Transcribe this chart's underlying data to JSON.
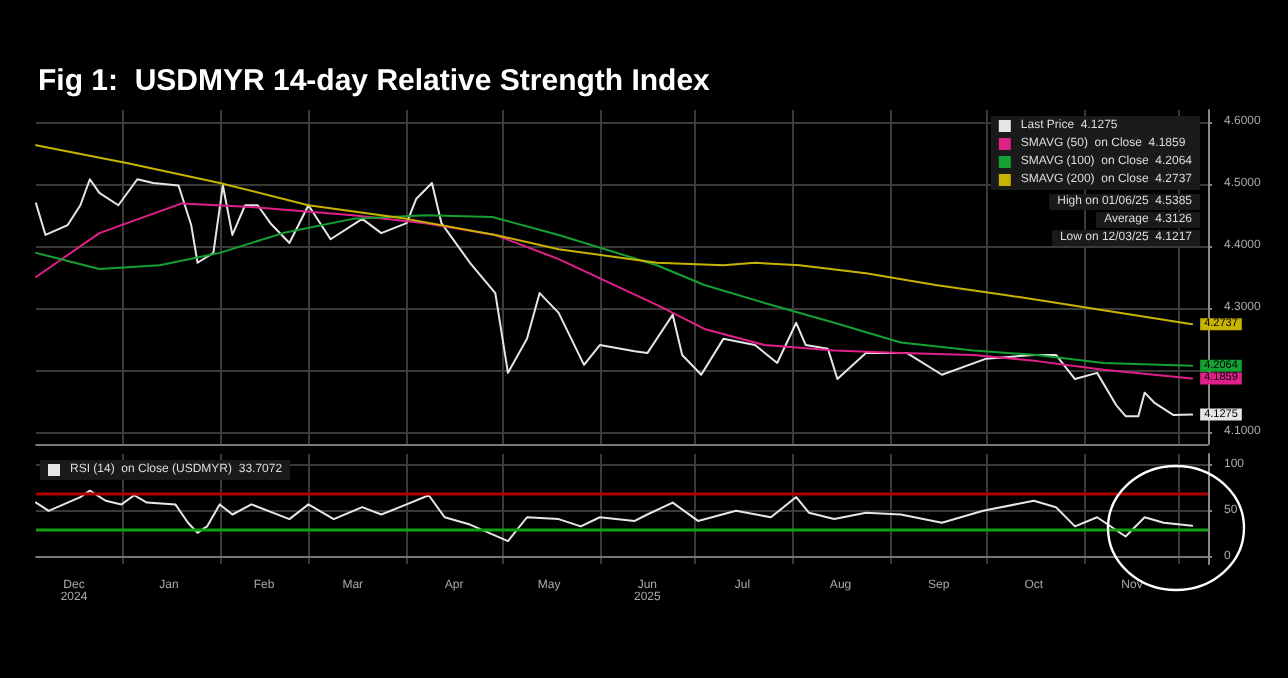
{
  "chart_data": [
    {
      "type": "line",
      "title": "Fig 1:  USDMYR 14-day Relative Strength Index",
      "xlim": [
        "2024-12-05",
        "2025-12-10"
      ],
      "xticks": [
        {
          "value": "2025-01-01",
          "label": null
        },
        {
          "value": "2025-02-01",
          "label": null
        },
        {
          "value": "2025-03-01",
          "label": null
        },
        {
          "value": "2025-04-01",
          "label": null
        },
        {
          "value": "2025-05-01",
          "label": null
        },
        {
          "value": "2025-06-01",
          "label": null
        },
        {
          "value": "2025-07-01",
          "label": null
        },
        {
          "value": "2025-08-01",
          "label": null
        },
        {
          "value": "2025-09-01",
          "label": null
        },
        {
          "value": "2025-10-01",
          "label": null
        },
        {
          "value": "2025-11-01",
          "label": null
        },
        {
          "value": "2025-12-01",
          "label": null
        }
      ],
      "ylim": [
        4.08,
        4.62
      ],
      "yticks": [
        {
          "value": 4.1,
          "label": "4.1000"
        },
        {
          "value": 4.2,
          "label": null
        },
        {
          "value": 4.3,
          "label": "4.3000"
        },
        {
          "value": 4.4,
          "label": "4.4000"
        },
        {
          "value": 4.5,
          "label": "4.5000"
        },
        {
          "value": 4.6,
          "label": "4.6000"
        }
      ],
      "tick_labels": "y",
      "grid": true,
      "legend": "top right",
      "marker": "none",
      "line_style": "solid",
      "annotations": [
        "High on 01/06/25  4.5385",
        "Average  4.3126",
        "Low on 12/03/25  4.1217"
      ],
      "series": [
        {
          "name": "Last Price  4.1275",
          "color": "#e6e6e6",
          "x": [
            "2024-12-05",
            "2024-12-08",
            "2024-12-15",
            "2024-12-19",
            "2024-12-22",
            "2024-12-25",
            "2024-12-31",
            "2025-01-06",
            "2025-01-11",
            "2025-01-19",
            "2025-01-23",
            "2025-01-25",
            "2025-01-30",
            "2025-02-02",
            "2025-02-05",
            "2025-02-09",
            "2025-02-13",
            "2025-02-17",
            "2025-02-23",
            "2025-03-01",
            "2025-03-08",
            "2025-03-18",
            "2025-03-24",
            "2025-04-01",
            "2025-04-04",
            "2025-04-09",
            "2025-04-12",
            "2025-04-21",
            "2025-04-29",
            "2025-05-03",
            "2025-05-09",
            "2025-05-13",
            "2025-05-19",
            "2025-05-27",
            "2025-06-01",
            "2025-06-12",
            "2025-06-16",
            "2025-06-24",
            "2025-06-27",
            "2025-07-03",
            "2025-07-10",
            "2025-07-20",
            "2025-07-27",
            "2025-08-02",
            "2025-08-05",
            "2025-08-12",
            "2025-08-15",
            "2025-08-24",
            "2025-09-06",
            "2025-09-17",
            "2025-10-01",
            "2025-10-16",
            "2025-10-23",
            "2025-10-29",
            "2025-11-05",
            "2025-11-11",
            "2025-11-14",
            "2025-11-18",
            "2025-11-20",
            "2025-11-23",
            "2025-11-29",
            "2025-12-05"
          ],
          "values": [
            4.469,
            4.418,
            4.434,
            4.466,
            4.508,
            4.486,
            4.466,
            4.508,
            4.502,
            4.498,
            4.434,
            4.373,
            4.389,
            4.498,
            4.418,
            4.466,
            4.466,
            4.437,
            4.405,
            4.466,
            4.411,
            4.444,
            4.421,
            4.437,
            4.476,
            4.502,
            4.437,
            4.373,
            4.324,
            4.195,
            4.25,
            4.324,
            4.292,
            4.208,
            4.24,
            4.23,
            4.227,
            4.289,
            4.224,
            4.192,
            4.25,
            4.24,
            4.211,
            4.276,
            4.24,
            4.234,
            4.185,
            4.227,
            4.227,
            4.192,
            4.218,
            4.224,
            4.224,
            4.185,
            4.195,
            4.143,
            4.125,
            4.125,
            4.163,
            4.147,
            4.127,
            4.1275
          ],
          "value_labels": [
            null,
            null,
            null,
            null,
            null,
            null,
            null,
            null,
            null,
            null,
            null,
            null,
            null,
            null,
            null,
            null,
            null,
            null,
            null,
            null,
            null,
            null,
            null,
            null,
            null,
            null,
            null,
            null,
            null,
            null,
            null,
            null,
            null,
            null,
            null,
            null,
            null,
            null,
            null,
            null,
            null,
            null,
            null,
            null,
            null,
            null,
            null,
            null,
            null,
            null,
            null,
            null,
            null,
            null,
            null,
            null,
            null,
            null,
            null,
            null,
            null,
            "4.1275"
          ]
        },
        {
          "name": "SMAVG (50)  on Close  4.1859",
          "color": "#e0208a",
          "x": [
            "2024-12-05",
            "2024-12-25",
            "2025-01-20",
            "2025-02-11",
            "2025-03-15",
            "2025-04-07",
            "2025-04-29",
            "2025-05-19",
            "2025-06-19",
            "2025-07-04",
            "2025-07-23",
            "2025-08-14",
            "2025-09-04",
            "2025-09-27",
            "2025-10-17",
            "2025-11-07",
            "2025-12-05"
          ],
          "values": [
            4.35,
            4.421,
            4.469,
            4.463,
            4.45,
            4.437,
            4.418,
            4.379,
            4.305,
            4.266,
            4.24,
            4.231,
            4.227,
            4.224,
            4.214,
            4.2,
            4.1859
          ],
          "value_labels": [
            null,
            null,
            null,
            null,
            null,
            null,
            null,
            null,
            null,
            null,
            null,
            null,
            null,
            null,
            null,
            null,
            "4.1859"
          ]
        },
        {
          "name": "SMAVG (100)  on Close  4.2064",
          "color": "#14a032",
          "x": [
            "2024-12-05",
            "2024-12-25",
            "2025-01-13",
            "2025-02-01",
            "2025-02-21",
            "2025-03-15",
            "2025-04-07",
            "2025-04-28",
            "2025-05-19",
            "2025-06-19",
            "2025-07-04",
            "2025-07-23",
            "2025-08-14",
            "2025-09-04",
            "2025-09-27",
            "2025-10-17",
            "2025-11-07",
            "2025-12-05"
          ],
          "values": [
            4.389,
            4.363,
            4.369,
            4.389,
            4.421,
            4.444,
            4.45,
            4.447,
            4.418,
            4.369,
            4.337,
            4.308,
            4.276,
            4.244,
            4.231,
            4.224,
            4.211,
            4.2064
          ],
          "value_labels": [
            null,
            null,
            null,
            null,
            null,
            null,
            null,
            null,
            null,
            null,
            null,
            null,
            null,
            null,
            null,
            null,
            null,
            "4.2064"
          ]
        },
        {
          "name": "SMAVG (200)  on Close  4.2737",
          "color": "#c8b400",
          "x": [
            "2024-12-05",
            "2025-01-03",
            "2025-02-01",
            "2025-03-01",
            "2025-04-01",
            "2025-04-29",
            "2025-05-19",
            "2025-06-19",
            "2025-07-10",
            "2025-07-20",
            "2025-08-03",
            "2025-08-24",
            "2025-09-15",
            "2025-10-07",
            "2025-10-27",
            "2025-12-05"
          ],
          "values": [
            4.563,
            4.534,
            4.502,
            4.466,
            4.444,
            4.418,
            4.395,
            4.373,
            4.369,
            4.373,
            4.369,
            4.356,
            4.337,
            4.321,
            4.305,
            4.2737
          ],
          "value_labels": [
            null,
            null,
            null,
            null,
            null,
            null,
            null,
            null,
            null,
            null,
            null,
            null,
            null,
            null,
            null,
            "4.2737"
          ]
        }
      ]
    },
    {
      "type": "line",
      "xlim": [
        "2024-12-05",
        "2025-12-10"
      ],
      "xticks": [
        {
          "value": "2025-01-01",
          "label": null
        },
        {
          "value": "2025-02-01",
          "label": null
        },
        {
          "value": "2025-03-01",
          "label": null
        },
        {
          "value": "2025-04-01",
          "label": null
        },
        {
          "value": "2025-05-01",
          "label": null
        },
        {
          "value": "2025-06-01",
          "label": null
        },
        {
          "value": "2025-07-01",
          "label": null
        },
        {
          "value": "2025-08-01",
          "label": null
        },
        {
          "value": "2025-09-01",
          "label": null
        },
        {
          "value": "2025-10-01",
          "label": null
        },
        {
          "value": "2025-11-01",
          "label": null
        },
        {
          "value": "2025-12-01",
          "label": null
        },
        {
          "value": "2024-12-17",
          "label": "Dec\n2024"
        },
        {
          "value": "2025-01-16",
          "label": "Jan"
        },
        {
          "value": "2025-02-15",
          "label": "Feb"
        },
        {
          "value": "2025-03-15",
          "label": "Mar"
        },
        {
          "value": "2025-04-16",
          "label": "Apr"
        },
        {
          "value": "2025-05-16",
          "label": "May"
        },
        {
          "value": "2025-06-16",
          "label": "Jun\n2025"
        },
        {
          "value": "2025-07-16",
          "label": "Jul"
        },
        {
          "value": "2025-08-16",
          "label": "Aug"
        },
        {
          "value": "2025-09-16",
          "label": "Sep"
        },
        {
          "value": "2025-10-16",
          "label": "Oct"
        },
        {
          "value": "2025-11-16",
          "label": "Nov"
        }
      ],
      "ylim": [
        -8,
        112
      ],
      "yticks": [
        0,
        50,
        100
      ],
      "grid": true,
      "legend": "top left",
      "marker": "none",
      "line_style": "solid",
      "ref_lines": [
        {
          "axis": "y",
          "value": 70,
          "color": "#b00000"
        },
        {
          "axis": "y",
          "value": 30,
          "color": "#10a010"
        }
      ],
      "series": [
        {
          "name": "RSI (14)  on Close (USDMYR)  33.7072",
          "color": "#e6e6e6",
          "x": [
            "2024-12-05",
            "2024-12-09",
            "2024-12-19",
            "2024-12-22",
            "2024-12-27",
            "2025-01-01",
            "2025-01-05",
            "2025-01-09",
            "2025-01-18",
            "2025-01-22",
            "2025-01-25",
            "2025-01-28",
            "2025-02-01",
            "2025-02-05",
            "2025-02-11",
            "2025-02-23",
            "2025-03-01",
            "2025-03-09",
            "2025-03-18",
            "2025-03-24",
            "2025-04-01",
            "2025-04-08",
            "2025-04-13",
            "2025-04-21",
            "2025-05-03",
            "2025-05-09",
            "2025-05-19",
            "2025-05-26",
            "2025-06-01",
            "2025-06-12",
            "2025-06-16",
            "2025-06-24",
            "2025-07-02",
            "2025-07-14",
            "2025-07-25",
            "2025-08-02",
            "2025-08-06",
            "2025-08-14",
            "2025-08-24",
            "2025-09-04",
            "2025-09-17",
            "2025-09-30",
            "2025-10-16",
            "2025-10-23",
            "2025-10-29",
            "2025-11-05",
            "2025-11-14",
            "2025-11-20",
            "2025-11-26",
            "2025-12-05"
          ],
          "values": [
            59,
            50,
            65,
            72,
            61,
            57,
            67,
            59,
            57,
            37,
            26,
            33,
            57,
            46,
            57,
            41,
            57,
            41,
            54,
            46,
            57,
            67,
            43,
            35,
            17,
            43,
            41,
            33,
            43,
            39,
            46,
            59,
            39,
            50,
            43,
            65,
            48,
            41,
            48,
            46,
            37,
            50,
            61,
            54,
            33,
            43,
            22,
            43,
            37,
            33.7
          ]
        }
      ]
    }
  ]
}
